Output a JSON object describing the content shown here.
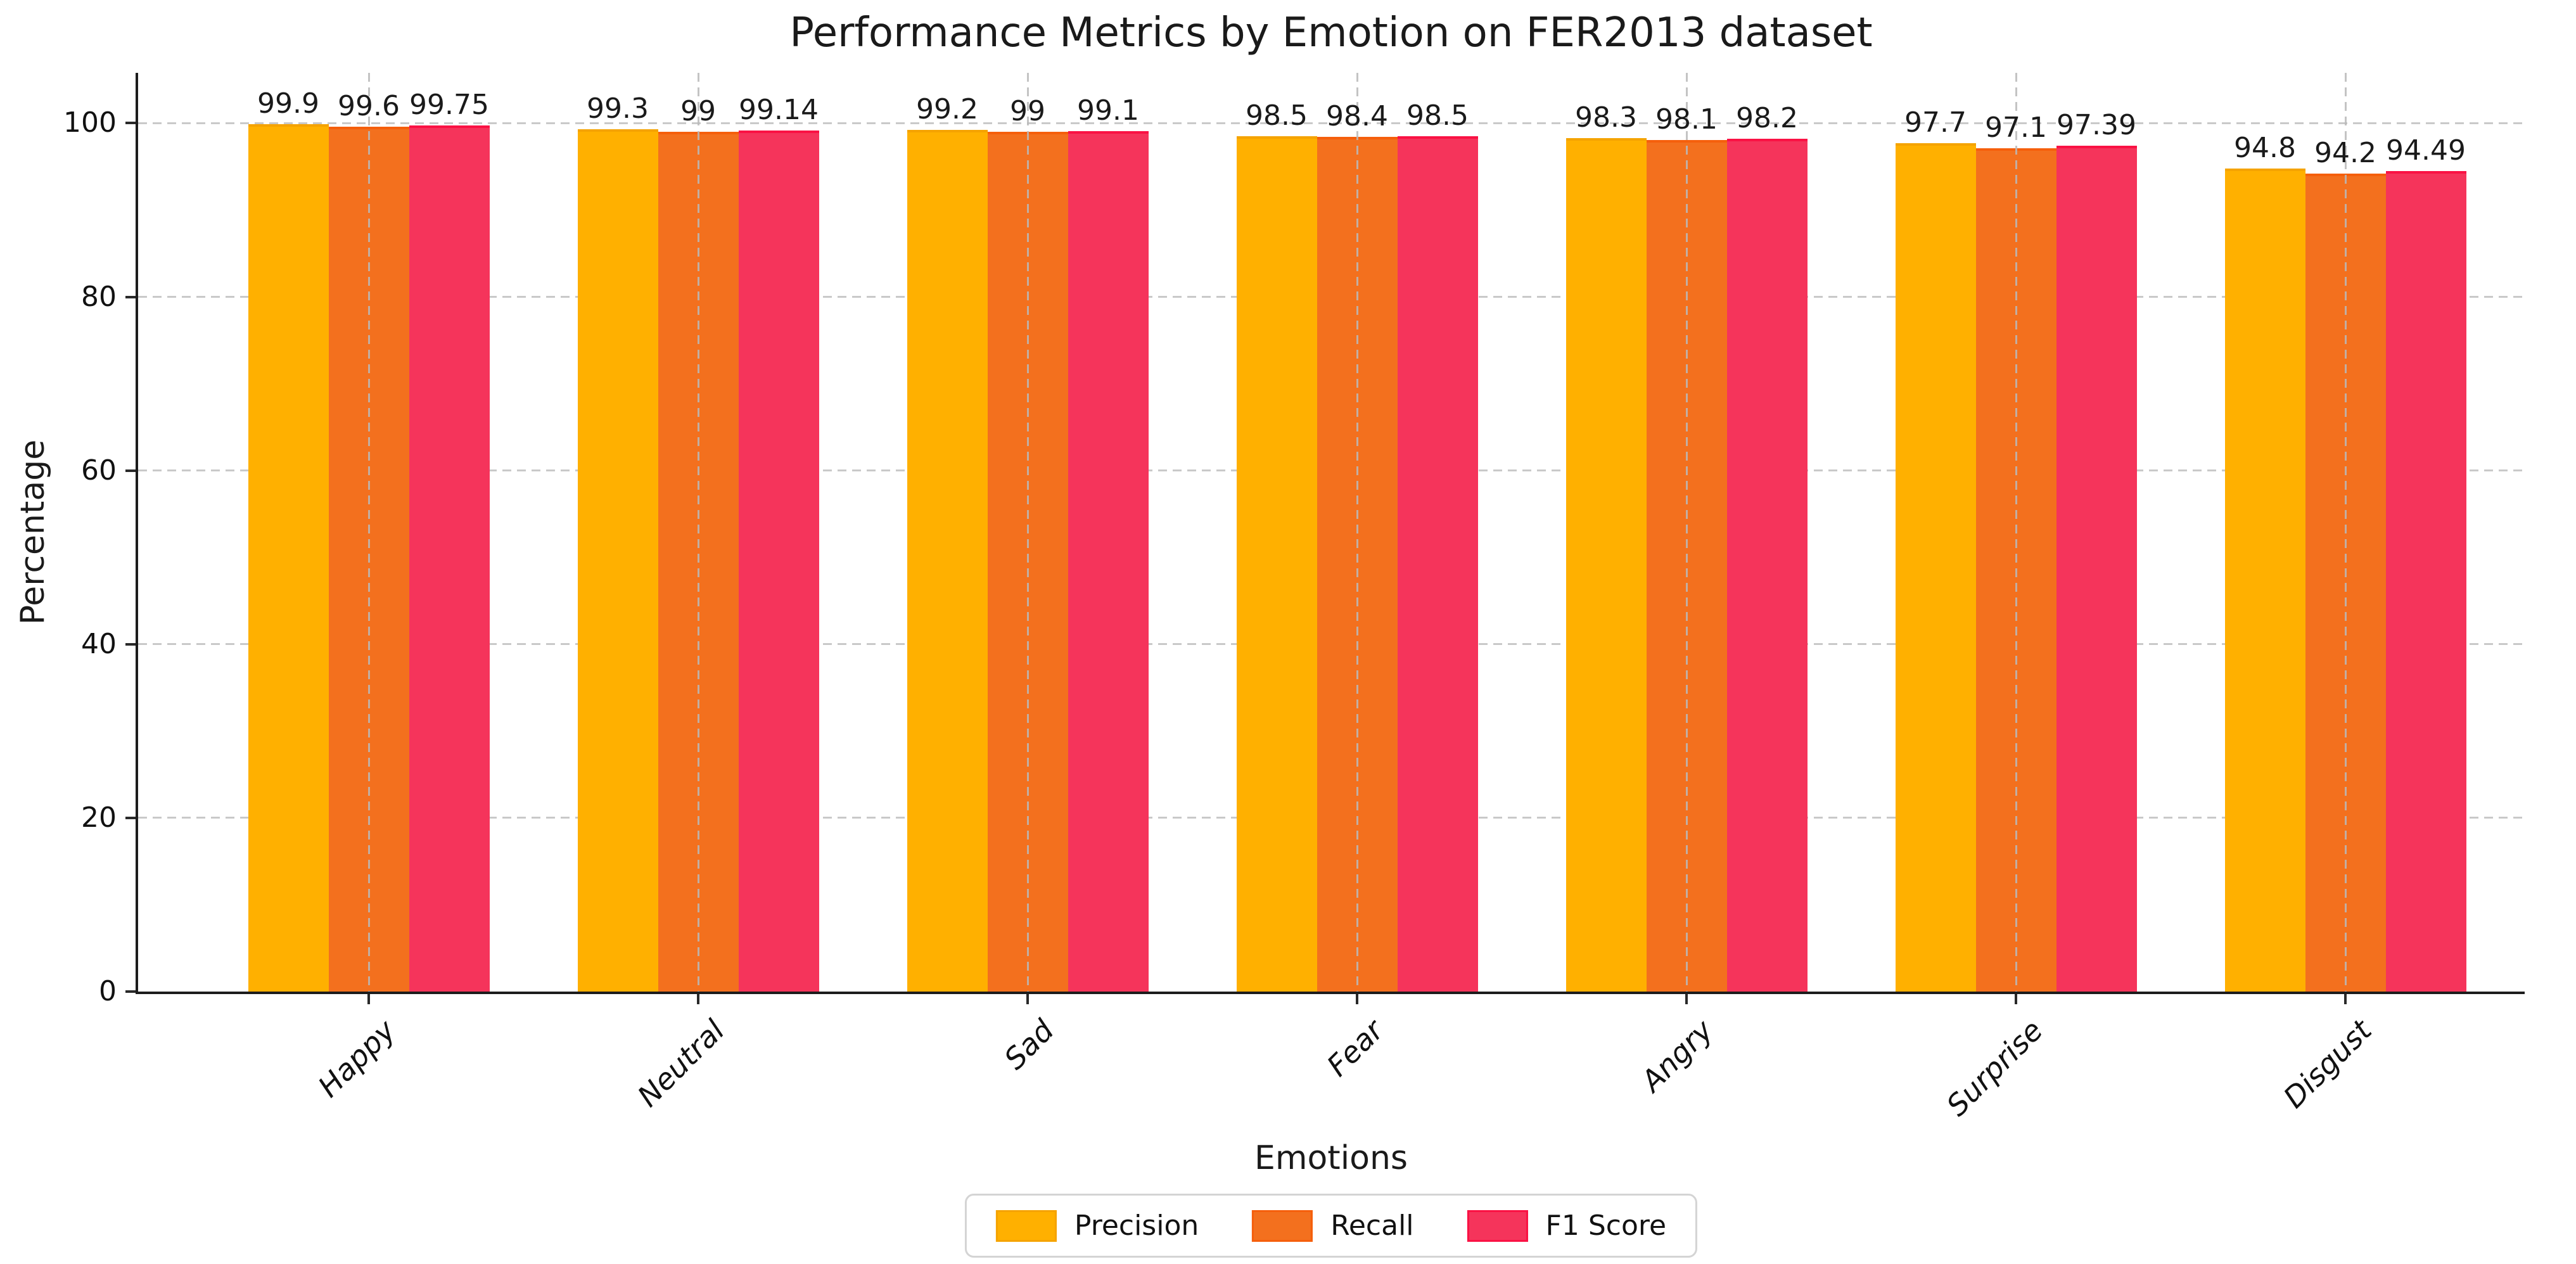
{
  "title": "Performance Metrics by Emotion on FER2013 dataset",
  "axes": {
    "xlabel": "Emotions",
    "ylabel": "Percentage"
  },
  "chart_data": {
    "type": "bar",
    "title": "Performance Metrics by Emotion on FER2013 dataset",
    "xlabel": "Emotions",
    "ylabel": "Percentage",
    "categories": [
      "Happy",
      "Neutral",
      "Sad",
      "Fear",
      "Angry",
      "Surprise",
      "Disgust"
    ],
    "series": [
      {
        "name": "Precision",
        "color": "#FFB000",
        "edge_color": "#F5A300",
        "values": [
          99.9,
          99.3,
          99.2,
          98.5,
          98.3,
          97.7,
          94.8
        ]
      },
      {
        "name": "Recall",
        "color": "#F3701E",
        "edge_color": "#F55F0C",
        "values": [
          99.6,
          99.0,
          99.0,
          98.4,
          98.1,
          97.1,
          94.2
        ]
      },
      {
        "name": "F1 Score",
        "color": "#F5345B",
        "edge_color": "#FA1244",
        "values": [
          99.75,
          99.14,
          99.1,
          98.5,
          98.2,
          97.39,
          94.49
        ]
      }
    ],
    "value_labels": [
      [
        "99.9",
        "99.6",
        "99.75"
      ],
      [
        "99.3",
        "99",
        "99.14"
      ],
      [
        "99.2",
        "99",
        "99.1"
      ],
      [
        "98.5",
        "98.4",
        "98.5"
      ],
      [
        "98.3",
        "98.1",
        "98.2"
      ],
      [
        "97.7",
        "97.1",
        "97.39"
      ],
      [
        "94.8",
        "94.2",
        "94.49"
      ]
    ],
    "ylim": [
      0,
      105.8
    ],
    "yticks": [
      0,
      20,
      40,
      60,
      80,
      100
    ],
    "grid": "dashed-both-axes",
    "legend_position": "bottom-center",
    "xticklabel_style": "italic, rotated 45deg"
  }
}
